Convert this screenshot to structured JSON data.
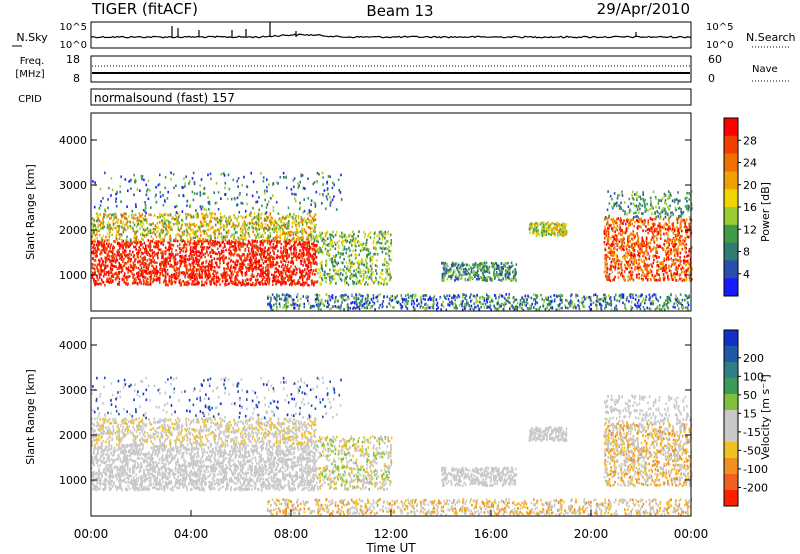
{
  "header": {
    "radar": "TIGER (fitACF)",
    "beam": "Beam 13",
    "date": "29/Apr/2010"
  },
  "nsky_panel": {
    "left_label": "N.Sky",
    "right_label": "N.Search",
    "left_ticks": [
      "10^5",
      "10^0"
    ],
    "right_ticks": [
      "10^5",
      "10^0"
    ]
  },
  "freq_panel": {
    "left_label_1": "Freq.",
    "left_label_2": "[MHz]",
    "right_label": "Nave",
    "left_ticks": [
      "18",
      "8"
    ],
    "right_ticks": [
      "60",
      "0"
    ]
  },
  "cpid_panel": {
    "label": "CPID",
    "text": "normalsound (fast) 157"
  },
  "colors": {
    "power": [
      "#1a1aff",
      "#2a4fb0",
      "#2e7d6e",
      "#3f9c45",
      "#9acd32",
      "#f2d400",
      "#f0a000",
      "#f07000",
      "#f04000",
      "#ff0000"
    ],
    "velocity": [
      "#1530c8",
      "#1e5aa8",
      "#2f7f8a",
      "#3c9a5a",
      "#7fc03c",
      "#c8c8c8",
      "#c8c8c8",
      "#f0c020",
      "#f09020",
      "#f06020",
      "#ff2000"
    ]
  },
  "chart_data": [
    {
      "type": "heatmap",
      "name": "power",
      "xlabel": "",
      "ylabel": "Slant Range [km]",
      "xlim": [
        "00:00",
        "24:00"
      ],
      "ylim": [
        200,
        4600
      ],
      "yticks": [
        "1000",
        "2000",
        "3000",
        "4000"
      ],
      "colorbar": {
        "label": "Power [dB]",
        "ticks": [
          "4",
          "8",
          "12",
          "16",
          "20",
          "24",
          "28"
        ],
        "range": [
          0,
          32
        ]
      }
    },
    {
      "type": "heatmap",
      "name": "velocity",
      "xlabel": "Time UT",
      "ylabel": "Slant Range [km]",
      "xlim": [
        "00:00",
        "24:00"
      ],
      "ylim": [
        200,
        4600
      ],
      "xticks": [
        "00:00",
        "04:00",
        "08:00",
        "12:00",
        "16:00",
        "20:00",
        "00:00"
      ],
      "yticks": [
        "1000",
        "2000",
        "3000",
        "4000"
      ],
      "colorbar": {
        "label": "Velocity [m s⁻¹]",
        "ticks": [
          "200",
          "100",
          "50",
          "15",
          "-15",
          "-50",
          "-100",
          "-200"
        ]
      }
    }
  ]
}
